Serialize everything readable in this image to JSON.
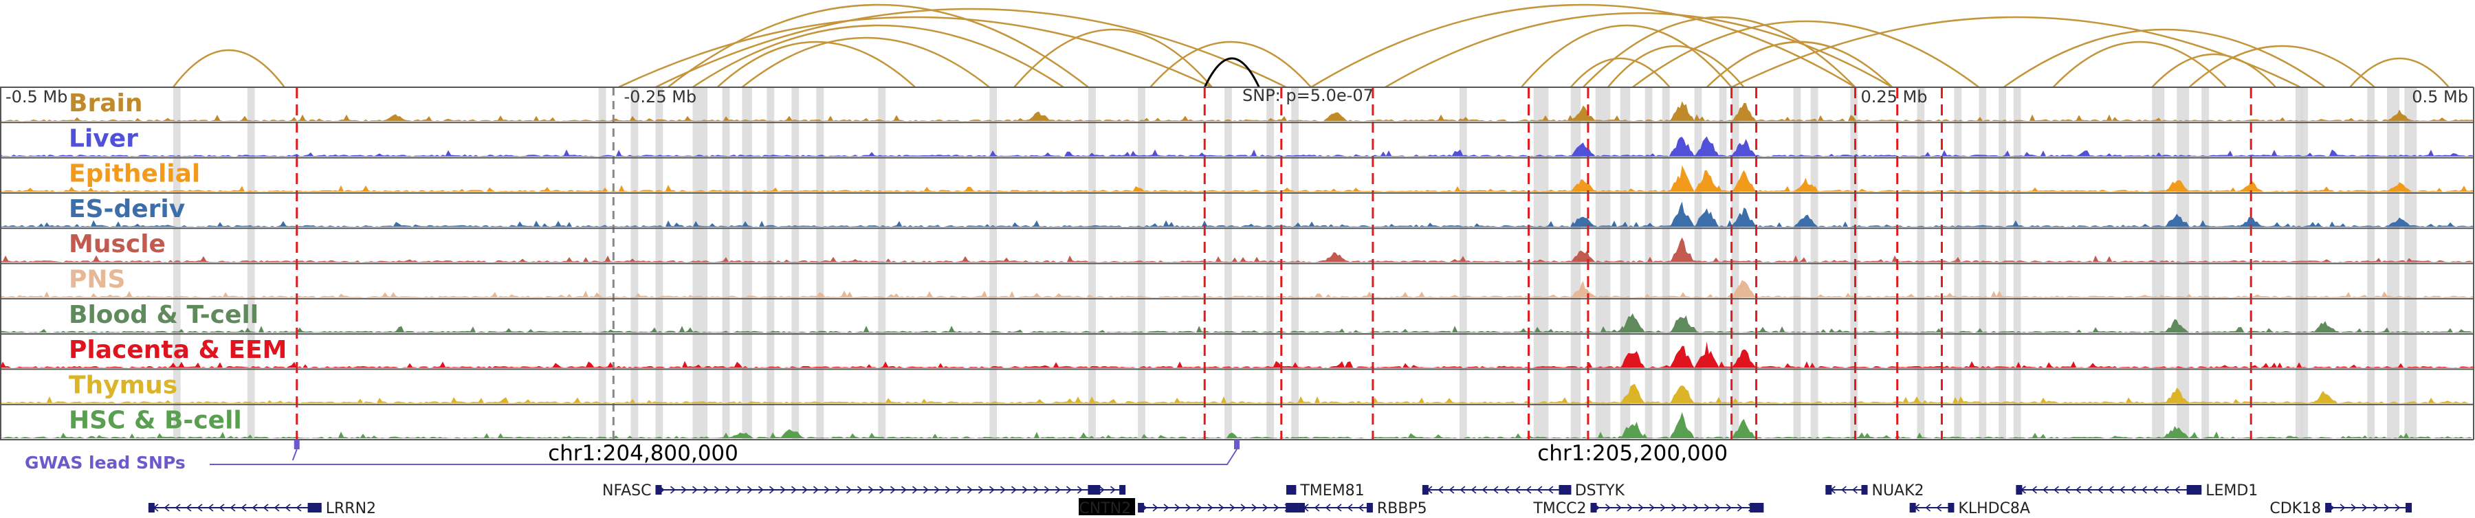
{
  "colors": {
    "arc": "#c4953a",
    "highlight_arc": "#000000",
    "gene": "#1a1a6e",
    "gwas": "#6a5acd",
    "red_line": "#e31a1c",
    "gray_band": "#d9d9d9",
    "frame": "#555555"
  },
  "chart_data": {
    "type": "genome-track",
    "x_axis": {
      "unit": "Mb offset from lead SNP",
      "range": [
        -0.5,
        0.5
      ],
      "ticks": [
        {
          "value": -0.5,
          "label": "-0.5 Mb"
        },
        {
          "value": -0.25,
          "label": "-0.25 Mb"
        },
        {
          "value": 0.25,
          "label": "0.25 Mb"
        },
        {
          "value": 0.5,
          "label": "0.5 Mb"
        }
      ]
    },
    "snp_annotation": "SNP: p=5.0e-07",
    "coordinate_labels": [
      {
        "x": -0.24,
        "label": "chr1:204,800,000"
      },
      {
        "x": 0.16,
        "label": "chr1:205,200,000"
      }
    ],
    "tracks": [
      {
        "label": "Brain",
        "color": "#c08a2a"
      },
      {
        "label": "Liver",
        "color": "#5050d8"
      },
      {
        "label": "Epithelial",
        "color": "#f29a1c"
      },
      {
        "label": "ES-deriv",
        "color": "#3c6eaa"
      },
      {
        "label": "Muscle",
        "color": "#c25a50"
      },
      {
        "label": "PNS",
        "color": "#e6b896"
      },
      {
        "label": "Blood & T-cell",
        "color": "#5f8a5c"
      },
      {
        "label": "Placenta & EEM",
        "color": "#e0141e"
      },
      {
        "label": "Thymus",
        "color": "#dcb428"
      },
      {
        "label": "HSC & B-cell",
        "color": "#58a050"
      }
    ],
    "signal_peaks": [
      {
        "x": -0.34,
        "tracks": [
          0
        ],
        "height": 0.25
      },
      {
        "x": -0.08,
        "tracks": [
          0
        ],
        "height": 0.4
      },
      {
        "x": 0.04,
        "tracks": [
          0,
          4
        ],
        "height": 0.45
      },
      {
        "x": 0.14,
        "tracks": [
          0,
          1,
          2,
          3,
          4,
          5
        ],
        "height": 0.6
      },
      {
        "x": 0.16,
        "tracks": [
          6,
          7,
          8,
          9
        ],
        "height": 0.85
      },
      {
        "x": 0.18,
        "tracks": [
          0,
          1,
          2,
          3,
          4,
          6,
          7,
          8,
          9
        ],
        "height": 0.9
      },
      {
        "x": 0.19,
        "tracks": [
          1,
          2,
          3,
          7
        ],
        "height": 0.9
      },
      {
        "x": 0.205,
        "tracks": [
          0,
          1,
          2,
          3,
          5,
          7,
          9
        ],
        "height": 0.75
      },
      {
        "x": 0.23,
        "tracks": [
          2,
          3
        ],
        "height": 0.5
      },
      {
        "x": 0.38,
        "tracks": [
          2,
          3,
          6,
          8,
          9
        ],
        "height": 0.55
      },
      {
        "x": 0.41,
        "tracks": [
          2,
          3
        ],
        "height": 0.4
      },
      {
        "x": 0.44,
        "tracks": [
          6,
          8
        ],
        "height": 0.5
      },
      {
        "x": 0.47,
        "tracks": [
          0,
          2,
          3
        ],
        "height": 0.4
      },
      {
        "x": -0.2,
        "tracks": [
          9
        ],
        "height": 0.3
      },
      {
        "x": -0.18,
        "tracks": [
          9
        ],
        "height": 0.45
      }
    ],
    "gray_bands": [
      {
        "x": -0.43,
        "w": 0.003
      },
      {
        "x": -0.4,
        "w": 0.003
      },
      {
        "x": -0.258,
        "w": 0.003
      },
      {
        "x": -0.245,
        "w": 0.003
      },
      {
        "x": -0.235,
        "w": 0.003
      },
      {
        "x": -0.22,
        "w": 0.006
      },
      {
        "x": -0.208,
        "w": 0.003
      },
      {
        "x": -0.2,
        "w": 0.004
      },
      {
        "x": -0.19,
        "w": 0.003
      },
      {
        "x": -0.18,
        "w": 0.003
      },
      {
        "x": -0.17,
        "w": 0.003
      },
      {
        "x": -0.145,
        "w": 0.003
      },
      {
        "x": -0.1,
        "w": 0.003
      },
      {
        "x": -0.06,
        "w": 0.003
      },
      {
        "x": -0.04,
        "w": 0.003
      },
      {
        "x": -0.005,
        "w": 0.003
      },
      {
        "x": 0.012,
        "w": 0.003
      },
      {
        "x": 0.022,
        "w": 0.003
      },
      {
        "x": 0.09,
        "w": 0.003
      },
      {
        "x": 0.12,
        "w": 0.006
      },
      {
        "x": 0.135,
        "w": 0.004
      },
      {
        "x": 0.145,
        "w": 0.006
      },
      {
        "x": 0.155,
        "w": 0.004
      },
      {
        "x": 0.165,
        "w": 0.003
      },
      {
        "x": 0.172,
        "w": 0.003
      },
      {
        "x": 0.185,
        "w": 0.003
      },
      {
        "x": 0.195,
        "w": 0.003
      },
      {
        "x": 0.2,
        "w": 0.003
      },
      {
        "x": 0.225,
        "w": 0.003
      },
      {
        "x": 0.232,
        "w": 0.003
      },
      {
        "x": 0.248,
        "w": 0.003
      },
      {
        "x": 0.275,
        "w": 0.003
      },
      {
        "x": 0.29,
        "w": 0.003
      },
      {
        "x": 0.3,
        "w": 0.003
      },
      {
        "x": 0.308,
        "w": 0.003
      },
      {
        "x": 0.314,
        "w": 0.003
      },
      {
        "x": 0.37,
        "w": 0.005
      },
      {
        "x": 0.38,
        "w": 0.005
      },
      {
        "x": 0.39,
        "w": 0.003
      },
      {
        "x": 0.43,
        "w": 0.003
      },
      {
        "x": 0.428,
        "w": 0.003
      },
      {
        "x": 0.457,
        "w": 0.003
      },
      {
        "x": 0.465,
        "w": 0.005
      },
      {
        "x": 0.472,
        "w": 0.005
      }
    ],
    "red_lines": [
      -0.38,
      -0.013,
      0.018,
      0.055,
      0.118,
      0.142,
      0.2,
      0.21,
      0.25,
      0.267,
      0.285,
      0.41
    ],
    "dashed_gray_lines": [
      -0.252
    ],
    "arcs": [
      {
        "x1": -0.43,
        "x2": -0.385,
        "h": 0.45
      },
      {
        "x1": -0.25,
        "x2": -0.01,
        "h": 0.85
      },
      {
        "x1": -0.23,
        "x2": -0.06,
        "h": 1.0
      },
      {
        "x1": -0.235,
        "x2": 0.02,
        "h": 0.95
      },
      {
        "x1": -0.22,
        "x2": -0.07,
        "h": 0.75
      },
      {
        "x1": -0.21,
        "x2": -0.13,
        "h": 0.55
      },
      {
        "x1": -0.2,
        "x2": -0.1,
        "h": 0.6
      },
      {
        "x1": -0.09,
        "x2": -0.01,
        "h": 0.7
      },
      {
        "x1": -0.035,
        "x2": 0.03,
        "h": 0.55
      },
      {
        "x1": 0.03,
        "x2": 0.25,
        "h": 1.0
      },
      {
        "x1": 0.06,
        "x2": 0.265,
        "h": 0.9
      },
      {
        "x1": 0.115,
        "x2": 0.2,
        "h": 0.75
      },
      {
        "x1": 0.14,
        "x2": 0.25,
        "h": 0.85
      },
      {
        "x1": 0.135,
        "x2": 0.175,
        "h": 0.35
      },
      {
        "x1": 0.15,
        "x2": 0.205,
        "h": 0.5
      },
      {
        "x1": 0.16,
        "x2": 0.3,
        "h": 0.8
      },
      {
        "x1": 0.19,
        "x2": 0.265,
        "h": 0.55
      },
      {
        "x1": 0.2,
        "x2": 0.43,
        "h": 0.85
      },
      {
        "x1": 0.31,
        "x2": 0.44,
        "h": 0.7
      },
      {
        "x1": 0.33,
        "x2": 0.4,
        "h": 0.55
      },
      {
        "x1": 0.37,
        "x2": 0.42,
        "h": 0.4
      },
      {
        "x1": 0.385,
        "x2": 0.46,
        "h": 0.5
      },
      {
        "x1": 0.45,
        "x2": 0.49,
        "h": 0.35
      }
    ],
    "highlight_arc": {
      "x1": -0.013,
      "x2": 0.009,
      "h": 0.35
    },
    "gwas": {
      "label": "GWAS lead SNPs",
      "snps": [
        -0.38,
        0.0
      ]
    },
    "genes": [
      {
        "name": "LRRN2",
        "start": -0.44,
        "end": -0.37,
        "row": 1,
        "strand": "-",
        "label_side": "right"
      },
      {
        "name": "NFASC",
        "start": -0.235,
        "end": -0.045,
        "row": 0,
        "strand": "+",
        "label_side": "left"
      },
      {
        "name": "CNTN2",
        "start": -0.04,
        "end": 0.025,
        "row": 1,
        "strand": "+",
        "label_side": "left",
        "highlight": true
      },
      {
        "name": "TMEM81",
        "start": 0.02,
        "end": 0.024,
        "row": 0,
        "strand": "+",
        "label_side": "right"
      },
      {
        "name": "RBBP5",
        "start": 0.025,
        "end": 0.055,
        "row": 1,
        "strand": "-",
        "label_side": "right"
      },
      {
        "name": "DSTYK",
        "start": 0.075,
        "end": 0.135,
        "row": 0,
        "strand": "-",
        "label_side": "right"
      },
      {
        "name": "TMCC2",
        "start": 0.143,
        "end": 0.213,
        "row": 1,
        "strand": "+",
        "label_side": "left"
      },
      {
        "name": "NUAK2",
        "start": 0.238,
        "end": 0.255,
        "row": 0,
        "strand": "-",
        "label_side": "right"
      },
      {
        "name": "KLHDC8A",
        "start": 0.272,
        "end": 0.29,
        "row": 1,
        "strand": "-",
        "label_side": "right"
      },
      {
        "name": "LEMD1",
        "start": 0.315,
        "end": 0.39,
        "row": 0,
        "strand": "-",
        "label_side": "right"
      },
      {
        "name": "CDK18",
        "start": 0.44,
        "end": 0.475,
        "row": 1,
        "strand": "+",
        "label_side": "left"
      }
    ]
  }
}
